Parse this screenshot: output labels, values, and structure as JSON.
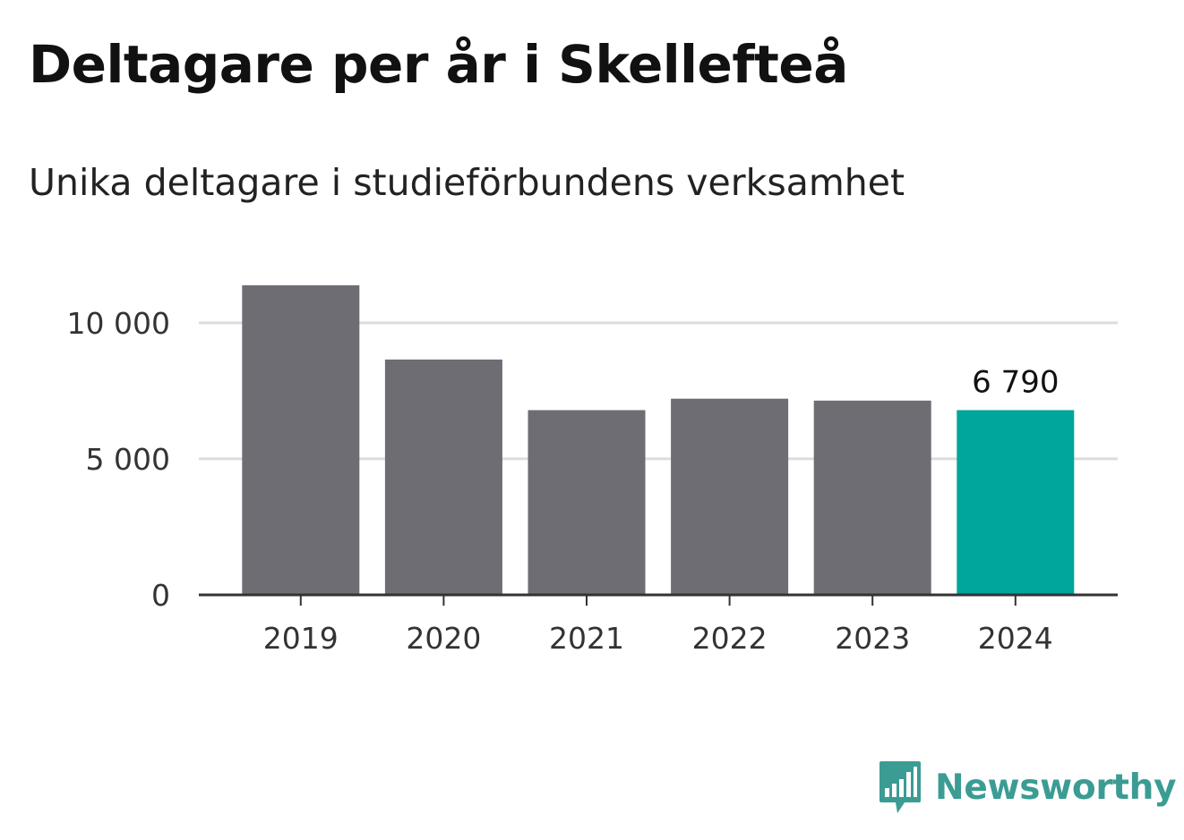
{
  "title": "Deltagare per år i Skellefteå",
  "subtitle": "Unika deltagare i studieförbundens verksamhet",
  "brand": {
    "name": "Newsworthy",
    "icon": "newsworthy-logo-icon",
    "color": "#3b9c94"
  },
  "chart_data": {
    "type": "bar",
    "categories": [
      "2019",
      "2020",
      "2021",
      "2022",
      "2023",
      "2024"
    ],
    "values": [
      11380,
      8650,
      6790,
      7210,
      7140,
      6790
    ],
    "ylim": [
      0,
      12000
    ],
    "yticks": [
      0,
      5000,
      10000
    ],
    "ytick_labels": [
      "0",
      "5 000",
      "10 000"
    ],
    "xlabel": "",
    "ylabel": "",
    "grid": true,
    "legend": "none",
    "highlight_index": 5,
    "data_labels": [
      {
        "index": 5,
        "text": "6 790"
      }
    ],
    "colors": {
      "bar": "#6e6d74",
      "highlight": "#00a59b",
      "grid": "#dcdcdc",
      "axis": "#333333"
    }
  }
}
